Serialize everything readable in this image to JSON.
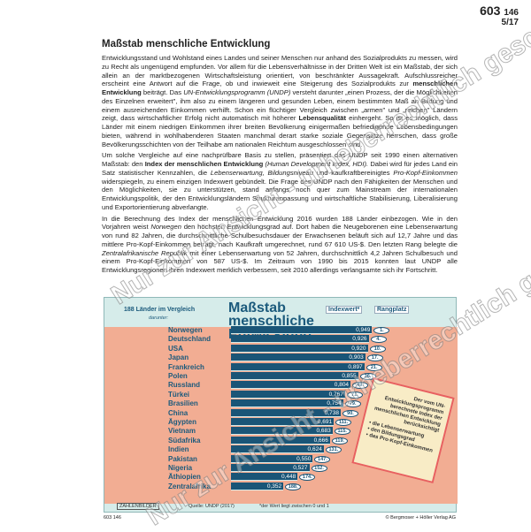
{
  "header": {
    "number": "603",
    "number_small": "146",
    "page": "5/17"
  },
  "title": "Maßstab menschliche Entwicklung",
  "paragraphs": [
    [
      {
        "t": "Entwicklungsstand und Wohlstand eines Landes und seiner Menschen nur anhand des Sozialprodukts zu messen, wird zu Recht als ungenügend empfunden. Vor allem für die Lebensverhältnisse in der Dritten Welt ist ein Maßstab, der sich allein an der marktbezogenen Wirtschaftsleistung orientiert, von beschränkter Aussagekraft. Aufschlussreicher erscheint eine Antwort auf die Frage, ob und inwieweit eine Steigerung des Sozialprodukts zur "
      },
      {
        "t": "menschlichen Entwicklung",
        "s": "b"
      },
      {
        "t": " beiträgt. Das "
      },
      {
        "t": "UN-Entwicklungsprogramm (UNDP)",
        "s": "i"
      },
      {
        "t": " versteht darunter „einen Prozess, der die Möglichkeiten des Einzelnen erweitert\", ihm also zu einem längeren und gesunden Leben, einem bestimmten Maß an Bildung und einem ausreichenden Einkommen verhilft. Schon ein flüchtiger Vergleich zwischen „armen\" und „reichen\" Ländern zeigt, dass wirtschaftlicher Erfolg nicht automatisch mit höherer "
      },
      {
        "t": "Lebensqualität",
        "s": "b"
      },
      {
        "t": " einhergeht. So ist es möglich, dass Länder mit einem niedrigen Einkommen ihrer breiten Bevölkerung einigermaßen befriedigende Lebensbedingungen bieten, während in wohlhabenderen Staaten manchmal derart starke soziale Gegensätze herrschen, dass große Bevölkerungsschichten von der Teilhabe am nationalen Reichtum ausgeschlossen sind."
      }
    ],
    [
      {
        "t": "Um solche Vergleiche auf eine nachprüfbare Basis zu stellen, präsentiert das UNDP seit 1990 einen alternativen Maßstab: den "
      },
      {
        "t": "Index der menschlichen Entwicklung",
        "s": "b"
      },
      {
        "t": " "
      },
      {
        "t": "(Human Development Index, HDI).",
        "s": "i"
      },
      {
        "t": " Dabei wird für jedes Land ein Satz statistischer Kennzahlen, die "
      },
      {
        "t": "Lebenserwartung, Bildungsniveau",
        "s": "i"
      },
      {
        "t": " und kaufkraftbereinigtes "
      },
      {
        "t": "Pro-Kopf-Einkommen",
        "s": "i"
      },
      {
        "t": " widerspiegeln, zu einem einzigen Indexwert gebündelt. Die Frage des UNDP nach den Fähigkeiten der Menschen und den Möglichkeiten, sie zu unterstützen, stand anfangs noch quer zum Mainstream der internationalen Entwicklungspolitik, der den Entwicklungsländern Strukturanpassung und wirtschaftliche Stabilisierung, Liberalisierung und Exportorientierung abverlangte."
      }
    ],
    [
      {
        "t": "In die Berechnung des Index der menschlichen Entwicklung 2016 wurden 188 Länder einbezogen. Wie in den Vorjahren weist "
      },
      {
        "t": "Norwegen",
        "s": "i"
      },
      {
        "t": " den höchsten Entwicklungsgrad auf. Dort haben die Neugeborenen eine Lebenserwartung von rund 82 Jahren, die durchschnittliche Schulbesuchsdauer der Erwachsenen beläuft sich auf 12,7 Jahre und das mittlere Pro-Kopf-Einkommen beträgt, nach Kaufkraft umgerechnet, rund 67 610 US-$. Den letzten Rang belegte die "
      },
      {
        "t": "Zentralafrikanische Republik",
        "s": "i"
      },
      {
        "t": " mit einer Lebenserwartung von 52 Jahren, durchschnittlich 4,2 Jahren Schulbesuch und einem Pro-Kopf-Einkommen von 587 US-$. Im Zeitraum von 1990 bis 2015 konnten laut UNDP alle Entwicklungsregionen ihren Indexwert merklich verbessern, seit 2010 allerdings verlangsamte sich ihr Fortschritt."
      }
    ]
  ],
  "chart_data": {
    "type": "bar",
    "title": "Maßstab menschliche Entwicklung",
    "subtitle": "188 Länder im Vergleich",
    "subtitle2": "darunter:",
    "value_header": "Indexwert*",
    "rank_header": "Rangplatz",
    "categories": [
      "Norwegen",
      "Deutschland",
      "USA",
      "Japan",
      "Frankreich",
      "Polen",
      "Russland",
      "Türkei",
      "Brasilien",
      "China",
      "Ägypten",
      "Vietnam",
      "Südafrika",
      "Indien",
      "Pakistan",
      "Nigeria",
      "Äthiopien",
      "Zentralafrika"
    ],
    "values": [
      "0,949",
      "0,926",
      "0,920",
      "0,903",
      "0,897",
      "0,855",
      "0,804",
      "0,767",
      "0,754",
      "0,738",
      "0,691",
      "0,683",
      "0,666",
      "0,624",
      "0,550",
      "0,527",
      "0,448",
      "0,352"
    ],
    "numeric_values": [
      0.949,
      0.926,
      0.92,
      0.903,
      0.897,
      0.855,
      0.804,
      0.767,
      0.754,
      0.738,
      0.691,
      0.683,
      0.666,
      0.624,
      0.55,
      0.527,
      0.448,
      0.352
    ],
    "ranks": [
      "1.",
      "4.",
      "10.",
      "17.",
      "21.",
      "36.",
      "49.",
      "71.",
      "79.",
      "90.",
      "111.",
      "115.",
      "119.",
      "131.",
      "147.",
      "152.",
      "174.",
      "188."
    ],
    "xlim": [
      0,
      1
    ],
    "note_title": "Der vom UN-Entwicklungsprogramm berechnete Index der menschlichen Entwicklung berücksichtigt",
    "note_items": [
      "die Lebenserwartung",
      "den Bildungsgrad",
      "das Pro-Kopf-Einkommen"
    ],
    "source": "Quelle: UNDP (2017)",
    "footnote": "*der Wert liegt zwischen 0 und 1",
    "brand": "ZAHLENBILDER",
    "colors": {
      "bar": "#1a5577",
      "background": "#d6ecea",
      "accent": "#f2ad93"
    }
  },
  "footer": {
    "code": "603 146",
    "copyright": "© Bergmoser + Höller Verlag AG"
  },
  "watermark": "Nur zur Ansicht - urheberrechtlich geschützt!"
}
